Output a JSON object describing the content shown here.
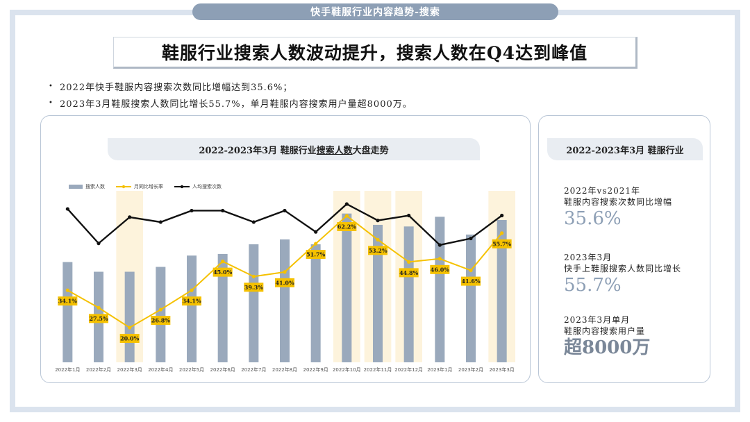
{
  "header": {
    "title": "快手鞋服行业内容趋势-搜索"
  },
  "headline": "鞋服行业搜索人数波动提升，搜索人数在Q4达到峰值",
  "bullets": [
    "2022年快手鞋服内容搜索次数同比增幅达到35.6%；",
    "2023年3月鞋服搜索人数同比增长55.7%，单月鞋服内容搜索用户量超8000万。"
  ],
  "chart_panel": {
    "title_pre": "2022-2023年3月 鞋服行业",
    "title_underline": "搜索人数",
    "title_post": "大盘走势"
  },
  "colors": {
    "bar": "#9aa9bc",
    "growth_line": "#f5c100",
    "avg_line": "#111111",
    "highlight": "#fdf3dc",
    "accent": "#8d9fb5"
  },
  "chart_data": {
    "type": "bar",
    "categories": [
      "2022年1月",
      "2022年2月",
      "2022年3月",
      "2022年4月",
      "2022年5月",
      "2022年6月",
      "2022年7月",
      "2022年8月",
      "2022年9月",
      "2022年10月",
      "2022年11月",
      "2022年12月",
      "2023年1月",
      "2023年2月",
      "2023年3月"
    ],
    "series": [
      {
        "name": "搜索人数",
        "type": "bar",
        "values": [
          0.62,
          0.56,
          0.56,
          0.59,
          0.66,
          0.67,
          0.73,
          0.76,
          0.73,
          0.92,
          0.85,
          0.84,
          0.9,
          0.79,
          0.88
        ]
      },
      {
        "name": "月同比增长率",
        "type": "line",
        "values": [
          34.1,
          27.5,
          20.0,
          26.8,
          34.1,
          45.0,
          39.3,
          41.0,
          51.7,
          62.2,
          53.2,
          44.8,
          46.0,
          41.6,
          55.7
        ],
        "labels": [
          "34.1%",
          "27.5%",
          "20.0%",
          "26.8%",
          "34.1%",
          "45.0%",
          "39.3%",
          "41.0%",
          "51.7%",
          "62.2%",
          "53.2%",
          "44.8%",
          "46.0%",
          "41.6%",
          "55.7%"
        ]
      },
      {
        "name": "人均搜索次数",
        "type": "line",
        "values": [
          0.88,
          0.67,
          0.83,
          0.8,
          0.87,
          0.87,
          0.8,
          0.87,
          0.74,
          0.91,
          0.81,
          0.84,
          0.66,
          0.7,
          0.84
        ]
      }
    ],
    "highlighted_categories": [
      "2022年3月",
      "2022年10月",
      "2022年11月",
      "2022年12月",
      "2023年3月"
    ],
    "legend_position": "top-left",
    "grid": false
  },
  "side_panel": {
    "title": "2022-2023年3月 鞋服行业",
    "stats": [
      {
        "label1": "2022年vs2021年",
        "label2": "鞋服内容搜索次数同比增幅",
        "value": "35.6%"
      },
      {
        "label1": "2023年3月",
        "label2": "快手上鞋服搜索人数同比增长",
        "value": "55.7%"
      },
      {
        "label1": "2023年3月单月",
        "label2": "鞋服内容搜索用户量",
        "value": "超8000万"
      }
    ]
  }
}
